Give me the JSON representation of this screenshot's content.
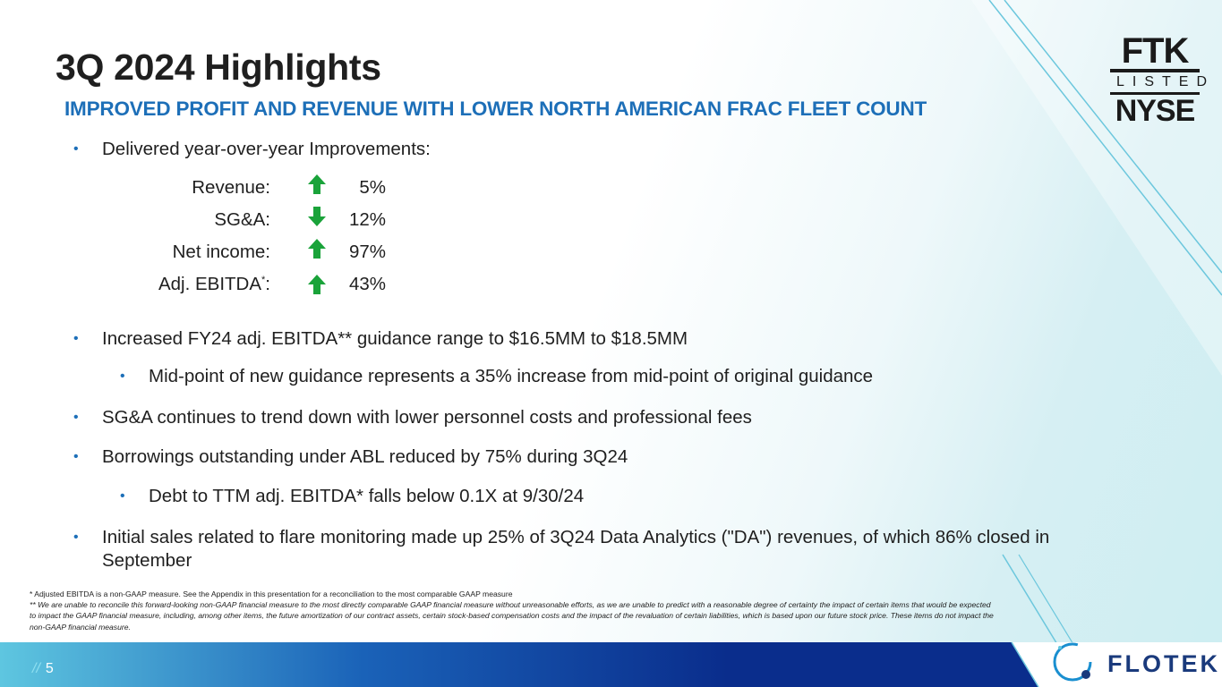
{
  "title": "3Q 2024 Highlights",
  "subtitle": "IMPROVED PROFIT AND REVENUE WITH LOWER NORTH AMERICAN FRAC FLEET COUNT",
  "bullets": {
    "b1": "Delivered year-over-year Improvements:",
    "b2": "Increased FY24 adj. EBITDA** guidance range to $16.5MM to $18.5MM",
    "b2a": "Mid-point of new guidance represents a 35% increase from mid-point of original guidance",
    "b3": "SG&A continues to trend down with lower personnel costs and professional fees",
    "b4": "Borrowings outstanding under ABL reduced by 75% during 3Q24",
    "b4a": "Debt to TTM adj. EBITDA* falls below 0.1X at 9/30/24",
    "b5": "Initial sales related to flare monitoring  made up 25% of 3Q24 Data Analytics (\"DA\") revenues, of which 86% closed in September"
  },
  "metrics": [
    {
      "label": "Revenue:",
      "value": "5%",
      "direction": "up"
    },
    {
      "label": "SG&A:",
      "value": "12%",
      "direction": "down"
    },
    {
      "label": "Net income:",
      "value": "97%",
      "direction": "up"
    },
    {
      "label": "Adj. EBITDA",
      "label_sup": "*",
      "label_suffix": ":",
      "value": "43%",
      "direction": "up"
    }
  ],
  "footnotes": {
    "f1": "*    Adjusted EBITDA is a non-GAAP measure.  See the Appendix in this presentation for a reconciliation to the most comparable GAAP measure",
    "f2": "**  We are unable to reconcile this forward-looking non-GAAP financial measure to the most directly comparable GAAP financial measure without unreasonable efforts, as we are unable to predict with a reasonable degree of certainty the impact of certain items that would be expected to impact the GAAP financial measure, including, among other items, the future amortization of our contract assets, certain stock-based compensation costs and the impact of the revaluation of certain liabilities, which is based upon our future stock price. These items do not impact the non-GAAP financial measure."
  },
  "footer": {
    "slashes": "//",
    "page_number": "5"
  },
  "badge": {
    "top": "FTK",
    "mid": "LISTED",
    "bottom": "NYSE"
  },
  "brand": {
    "name": "FLOTEK"
  },
  "colors": {
    "accent": "#1d6fb8",
    "arrow_green": "#1aa33a",
    "footer_dark": "#0a2d8c",
    "footer_light": "#5ec6e0"
  },
  "icons": {
    "up": "arrow-up-icon",
    "down": "arrow-down-icon"
  }
}
